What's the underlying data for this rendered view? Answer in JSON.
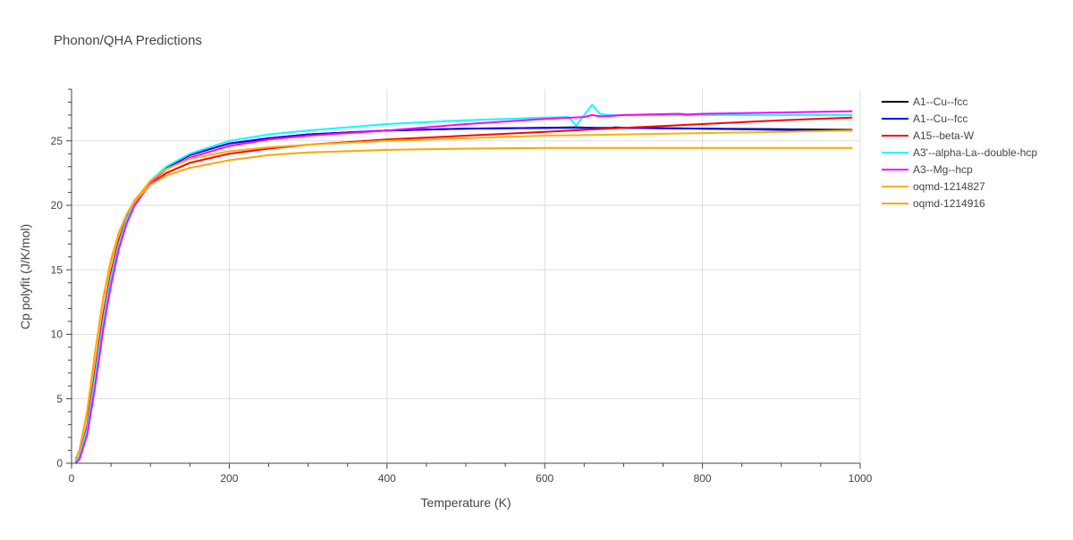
{
  "chart_data": {
    "type": "line",
    "title": "Phonon/QHA Predictions",
    "xlabel": "Temperature (K)",
    "ylabel": "Cp polyfit (J/K/mol)",
    "xlim": [
      0,
      1000
    ],
    "ylim": [
      0,
      29
    ],
    "x_ticks": [
      0,
      200,
      400,
      600,
      800,
      1000
    ],
    "y_ticks": [
      0,
      5,
      10,
      15,
      20,
      25
    ],
    "grid": true,
    "legend_position": "right",
    "series": [
      {
        "name": "A1--Cu--fcc",
        "color": "#000000",
        "x": [
          5,
          10,
          20,
          30,
          40,
          50,
          60,
          70,
          80,
          100,
          120,
          150,
          200,
          250,
          300,
          400,
          500,
          600,
          640,
          660,
          680,
          690,
          700,
          800,
          900,
          990
        ],
        "y": [
          0.1,
          0.5,
          2.8,
          7.0,
          11.2,
          14.6,
          17.2,
          19.0,
          20.3,
          21.9,
          22.9,
          23.9,
          24.8,
          25.2,
          25.5,
          25.8,
          25.95,
          26.0,
          26.05,
          26.0,
          25.95,
          26.05,
          26.0,
          25.95,
          25.9,
          25.85
        ]
      },
      {
        "name": "A1--Cu--fcc",
        "color": "#0000ff",
        "x": [
          5,
          10,
          20,
          30,
          40,
          50,
          60,
          70,
          80,
          100,
          120,
          150,
          200,
          250,
          300,
          400,
          500,
          600,
          700,
          800,
          900,
          990
        ],
        "y": [
          0.1,
          0.5,
          2.8,
          7.0,
          11.2,
          14.6,
          17.2,
          19.0,
          20.3,
          21.9,
          22.9,
          23.9,
          24.8,
          25.2,
          25.5,
          25.8,
          25.95,
          26.0,
          26.0,
          25.95,
          25.85,
          25.8
        ]
      },
      {
        "name": "A15--beta-W",
        "color": "#ff0000",
        "x": [
          5,
          10,
          20,
          30,
          40,
          50,
          60,
          70,
          80,
          100,
          120,
          150,
          200,
          250,
          300,
          400,
          500,
          600,
          700,
          800,
          900,
          990
        ],
        "y": [
          0.1,
          0.5,
          3.0,
          7.3,
          11.5,
          14.8,
          17.3,
          19.0,
          20.2,
          21.6,
          22.5,
          23.3,
          24.0,
          24.4,
          24.7,
          25.1,
          25.4,
          25.7,
          26.0,
          26.3,
          26.6,
          26.8
        ]
      },
      {
        "name": "A3'--alpha-La--double-hcp",
        "color": "#00ffff",
        "x": [
          5,
          10,
          20,
          30,
          40,
          50,
          60,
          70,
          80,
          100,
          120,
          150,
          200,
          250,
          300,
          400,
          500,
          600,
          630,
          640,
          650,
          660,
          670,
          680,
          700,
          800,
          900,
          990
        ],
        "y": [
          0.1,
          0.5,
          2.7,
          6.8,
          11.0,
          14.4,
          17.0,
          18.9,
          20.2,
          21.9,
          23.0,
          24.0,
          25.0,
          25.5,
          25.8,
          26.3,
          26.6,
          26.8,
          26.85,
          26.2,
          27.0,
          27.8,
          27.1,
          27.0,
          27.0,
          27.0,
          27.0,
          27.0
        ]
      },
      {
        "name": "A3--Mg--hcp",
        "color": "#ff00ff",
        "x": [
          5,
          10,
          20,
          30,
          40,
          50,
          60,
          70,
          80,
          100,
          120,
          150,
          200,
          250,
          300,
          400,
          500,
          600,
          650,
          660,
          670,
          680,
          700,
          770,
          780,
          800,
          900,
          990
        ],
        "y": [
          0.0,
          0.3,
          2.2,
          6.0,
          10.3,
          13.8,
          16.6,
          18.6,
          20.0,
          21.7,
          22.8,
          23.7,
          24.6,
          25.1,
          25.4,
          25.8,
          26.3,
          26.7,
          26.85,
          27.0,
          26.9,
          26.9,
          27.0,
          27.1,
          27.05,
          27.1,
          27.2,
          27.3
        ]
      },
      {
        "name": "oqmd-1214827",
        "color": "#ffb000",
        "x": [
          5,
          10,
          20,
          30,
          40,
          50,
          60,
          70,
          80,
          100,
          120,
          150,
          200,
          250,
          300,
          400,
          500,
          600,
          700,
          800,
          900,
          990
        ],
        "y": [
          0.3,
          1.0,
          4.0,
          8.6,
          12.6,
          15.6,
          17.8,
          19.3,
          20.4,
          21.9,
          22.8,
          23.6,
          24.2,
          24.5,
          24.7,
          25.0,
          25.2,
          25.4,
          25.5,
          25.6,
          25.7,
          25.8
        ]
      },
      {
        "name": "oqmd-1214916",
        "color": "#ffa500",
        "x": [
          5,
          10,
          20,
          30,
          40,
          50,
          60,
          70,
          80,
          100,
          120,
          150,
          200,
          250,
          300,
          400,
          500,
          600,
          700,
          800,
          900,
          990
        ],
        "y": [
          0.3,
          1.0,
          4.1,
          8.7,
          12.8,
          15.8,
          17.9,
          19.3,
          20.3,
          21.6,
          22.3,
          22.9,
          23.5,
          23.9,
          24.1,
          24.3,
          24.4,
          24.45,
          24.45,
          24.45,
          24.45,
          24.45
        ]
      }
    ]
  }
}
